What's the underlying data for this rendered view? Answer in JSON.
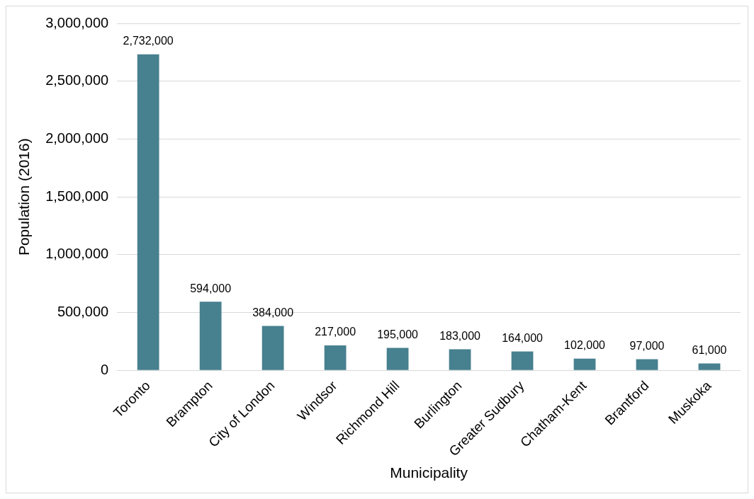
{
  "chart_data": {
    "type": "bar",
    "xlabel": "Municipality",
    "ylabel": "Population (2016)",
    "categories": [
      "Toronto",
      "Brampton",
      "City of London",
      "Windsor",
      "Richmond Hill",
      "Burlington",
      "Greater Sudbury",
      "Chatham-Kent",
      "Brantford",
      "Muskoka"
    ],
    "values": [
      2732000,
      594000,
      384000,
      217000,
      195000,
      183000,
      164000,
      102000,
      97000,
      61000
    ],
    "value_labels": [
      "2,732,000",
      "594,000",
      "384,000",
      "217,000",
      "195,000",
      "183,000",
      "164,000",
      "102,000",
      "97,000",
      "61,000"
    ],
    "color": "#47808f",
    "ylim": [
      0,
      3000000
    ],
    "yticks": [
      0,
      {
        "value": 500000,
        "label": "500,000"
      },
      {
        "value": 1000000,
        "label": "1,000,000"
      },
      {
        "value": 1500000,
        "label": "1,500,000"
      },
      {
        "value": 2000000,
        "label": "2,000,000"
      },
      {
        "value": 2500000,
        "label": "2,500,000"
      },
      {
        "value": 3000000,
        "label": "3,000,000"
      }
    ],
    "grid": "y",
    "legend": false
  }
}
